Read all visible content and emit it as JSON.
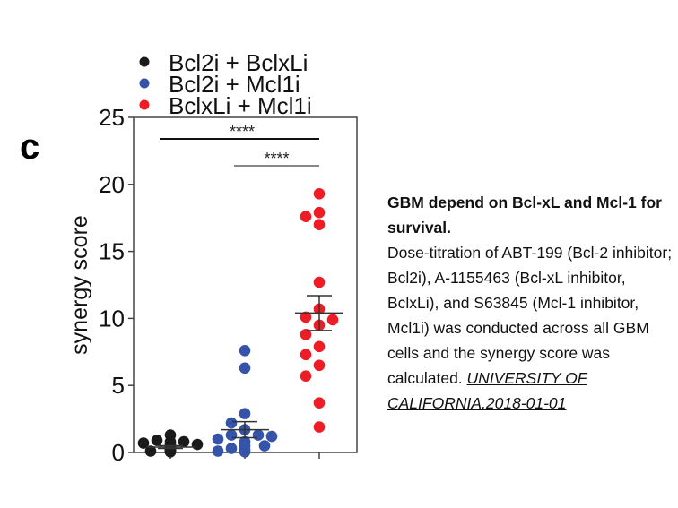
{
  "panel_label": "c",
  "chart_data": {
    "type": "scatter",
    "title": "",
    "xlabel": "",
    "ylabel": "synergy score",
    "ylim": [
      0,
      25
    ],
    "yticks": [
      "0",
      "5",
      "10",
      "15",
      "20",
      "25"
    ],
    "categories": [
      "Bcl2i + BclxLi",
      "Bcl2i + Mcl1i",
      "BclxLi + Mcl1i"
    ],
    "legend_position": "top",
    "series": [
      {
        "name": "Bcl2i + BclxLi",
        "color": "#1a1a1a",
        "mean": 0.4,
        "sem": 0.1,
        "values": [
          1.3,
          0.9,
          0.8,
          0.7,
          0.6,
          0.5,
          0.4,
          0.3,
          0.25,
          0.2,
          0.15,
          0.1,
          0.1,
          0.05,
          0.05,
          0.3,
          0.6,
          0.8
        ]
      },
      {
        "name": "Bcl2i + Mcl1i",
        "color": "#3553a8",
        "mean": 1.7,
        "sem": 0.6,
        "values": [
          7.6,
          6.3,
          2.9,
          2.2,
          1.7,
          1.3,
          1.3,
          1.0,
          0.8,
          0.5,
          0.5,
          0.3,
          0.2,
          0.1,
          0.05,
          1.2
        ]
      },
      {
        "name": "BclxLi + Mcl1i",
        "color": "#ee1c24",
        "mean": 10.4,
        "sem": 1.3,
        "values": [
          19.3,
          17.9,
          17.6,
          17.0,
          12.7,
          10.7,
          10.1,
          9.9,
          9.5,
          8.8,
          7.9,
          7.3,
          6.5,
          5.7,
          3.7,
          1.9
        ]
      }
    ],
    "significance": [
      {
        "from": 0,
        "to": 2,
        "label": "****"
      },
      {
        "from": 1,
        "to": 2,
        "label": "****"
      }
    ]
  },
  "caption": {
    "title": "GBM depend on Bcl-xL and Mcl-1 for survival.",
    "body": "Dose-titration of ABT-199 (Bcl-2 inhibitor; Bcl2i), A-1155463 (Bcl-xL inhibitor, BclxLi), and S63845 (Mcl-1 inhibitor, Mcl1i) was conducted across all GBM cells and the synergy score was calculated.",
    "source_link": "UNIVERSITY OF CALIFORNIA.2018-01-01"
  }
}
